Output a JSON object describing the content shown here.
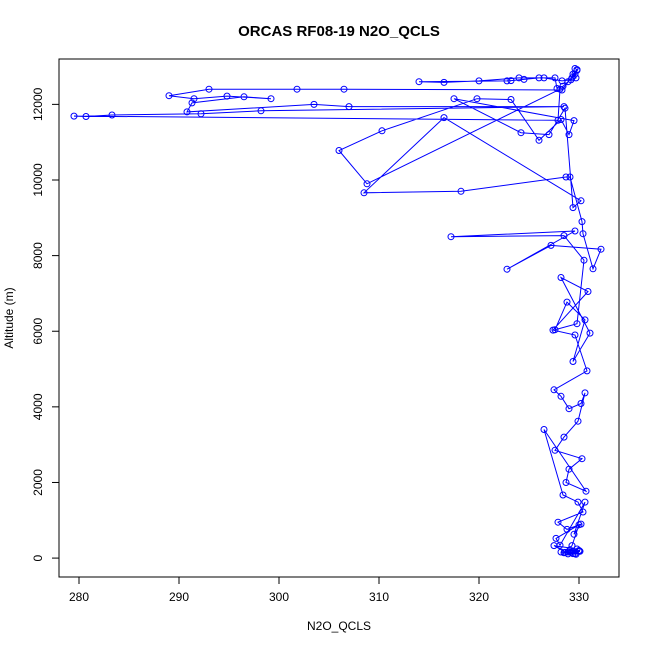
{
  "chart_data": {
    "type": "line",
    "title": "ORCAS RF08-19 N2O_QCLS",
    "xlabel": "N2O_QCLS",
    "ylabel": "Altitude (m)",
    "xlim": [
      278,
      334
    ],
    "ylim": [
      -500,
      13200
    ],
    "xticks": [
      280,
      290,
      300,
      310,
      320,
      330
    ],
    "yticks": [
      0,
      2000,
      4000,
      6000,
      8000,
      10000,
      12000
    ],
    "grid": false,
    "markers": "open-circle",
    "line_color": "#0000ff",
    "series": [
      {
        "x": [
          329.6,
          329.8,
          329.4,
          329.7,
          329.2,
          328.3,
          326.5,
          324.0,
          320.0,
          316.5,
          314.0,
          322.8,
          323.2,
          324.5,
          326.0,
          327.6,
          327.8,
          328.4,
          328.9,
          329.3,
          329.6,
          329.8,
          328.3,
          306.5,
          301.8,
          293.0,
          289.0,
          291.5,
          294.8,
          299.2,
          296.5,
          291.3,
          290.8,
          303.5,
          307.0,
          328.5,
          298.2,
          292.2,
          283.3,
          280.7,
          279.5,
          327.9,
          328.1,
          308.8,
          306.0,
          310.3,
          319.8,
          323.2,
          326.0,
          328.2,
          329.0,
          329.5,
          317.5,
          324.2,
          327.0,
          328.6,
          329.4,
          330.2,
          316.5,
          308.5,
          318.2,
          328.7,
          329.1,
          330.3,
          330.4,
          331.4,
          332.2,
          327.2,
          322.8,
          329.6,
          317.2,
          328.5,
          330.5,
          329.8,
          327.6,
          328.8,
          330.6,
          329.4,
          331.1,
          328.2,
          330.9,
          327.4,
          329.6,
          330.8,
          327.5,
          328.2,
          329.0,
          330.2,
          330.6,
          329.9,
          328.5,
          327.6,
          330.3,
          329.0,
          328.7,
          330.7,
          326.5,
          328.4,
          329.9,
          330.4,
          327.9,
          328.8,
          330.2,
          329.5,
          330.6,
          328.1,
          327.7,
          330.0,
          329.3,
          328.6,
          329.8,
          327.5,
          328.9,
          330.1,
          329.4,
          328.2,
          329.7,
          330.0,
          329.1,
          328.5,
          328.9,
          329.6,
          330.0,
          329.2
        ],
        "y": [
          12950,
          12920,
          12800,
          12700,
          12650,
          12620,
          12700,
          12700,
          12620,
          12580,
          12600,
          12620,
          12630,
          12660,
          12700,
          12700,
          12420,
          12480,
          12600,
          12700,
          12800,
          12900,
          12380,
          12400,
          12400,
          12400,
          12230,
          12150,
          12220,
          12150,
          12200,
          12040,
          11800,
          12000,
          11940,
          11940,
          11830,
          11750,
          11720,
          11680,
          11690,
          11580,
          12400,
          9900,
          10780,
          11300,
          12150,
          12130,
          11050,
          11600,
          11200,
          11570,
          12150,
          11250,
          11200,
          11900,
          9270,
          9450,
          11650,
          9660,
          9700,
          10080,
          10080,
          8900,
          8580,
          7650,
          8170,
          8270,
          7640,
          8650,
          8500,
          8530,
          7880,
          6200,
          6040,
          6770,
          6300,
          5200,
          5950,
          7420,
          7050,
          6030,
          5900,
          4950,
          4450,
          4280,
          3950,
          4090,
          4370,
          3620,
          3200,
          2850,
          2630,
          2350,
          2000,
          1770,
          3400,
          1670,
          1480,
          1220,
          950,
          760,
          900,
          630,
          1480,
          340,
          520,
          880,
          330,
          150,
          240,
          330,
          110,
          180,
          120,
          160,
          100,
          200,
          220,
          140,
          160,
          120,
          180,
          150
        ]
      }
    ]
  }
}
